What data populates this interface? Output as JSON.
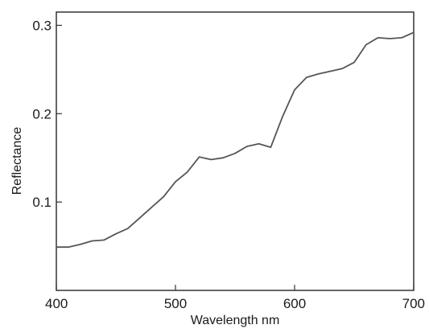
{
  "chart_data": {
    "type": "line",
    "title": "",
    "xlabel": "Wavelength nm",
    "ylabel": "Reflectance",
    "xlim": [
      400,
      700
    ],
    "ylim": [
      0.0,
      0.315
    ],
    "grid": false,
    "legend": "none",
    "x_ticks": [
      400,
      500,
      600,
      700
    ],
    "x_tick_labels": [
      "400",
      "500",
      "600",
      "700"
    ],
    "y_ticks": [
      0.1,
      0.2,
      0.3
    ],
    "y_tick_labels": [
      "0.1",
      "0.2",
      "0.3"
    ],
    "line_color": "#555555",
    "series": [
      {
        "x": [
          400,
          410,
          420,
          430,
          440,
          450,
          460,
          470,
          480,
          490,
          500,
          510,
          520,
          530,
          540,
          550,
          560,
          570,
          580,
          590,
          600,
          610,
          620,
          630,
          640,
          650,
          660,
          670,
          680,
          690,
          700
        ],
        "values": [
          0.049,
          0.049,
          0.052,
          0.056,
          0.057,
          0.064,
          0.07,
          0.082,
          0.094,
          0.106,
          0.123,
          0.134,
          0.151,
          0.148,
          0.15,
          0.155,
          0.163,
          0.166,
          0.162,
          0.197,
          0.227,
          0.241,
          0.245,
          0.248,
          0.251,
          0.258,
          0.278,
          0.286,
          0.285,
          0.286,
          0.292
        ]
      }
    ]
  }
}
